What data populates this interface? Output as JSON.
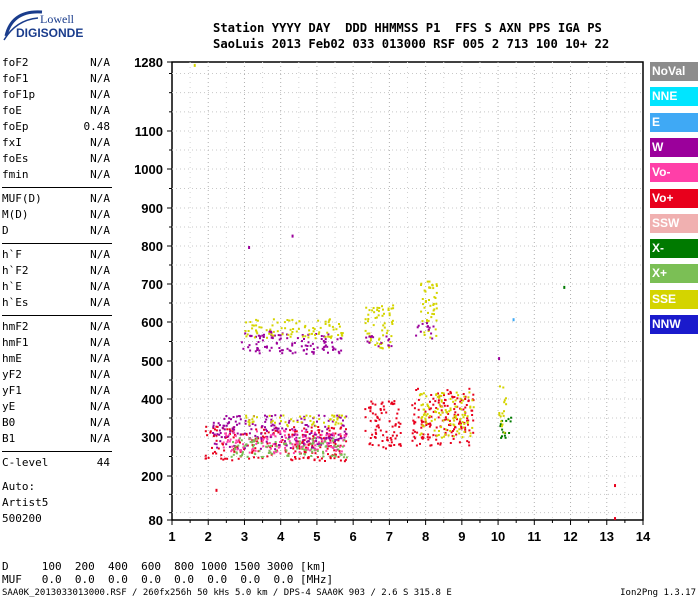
{
  "logo": {
    "line1": "Lowell",
    "line2": "DIGISONDE"
  },
  "header": {
    "row1": "Station YYYY DAY  DDD HHMMSS P1  FFS S AXN PPS IGA PS",
    "row2": "SaoLuis 2013 Feb02 033 013000 RSF 005 2 713 100 10+ 22"
  },
  "params": [
    {
      "k": "foF2",
      "v": "N/A"
    },
    {
      "k": "foF1",
      "v": "N/A"
    },
    {
      "k": "foF1p",
      "v": "N/A"
    },
    {
      "k": "foE",
      "v": "N/A"
    },
    {
      "k": "foEp",
      "v": "0.48"
    },
    {
      "k": "fxI",
      "v": "N/A"
    },
    {
      "k": "foEs",
      "v": "N/A"
    },
    {
      "k": "fmin",
      "v": "N/A"
    },
    {
      "k": "MUF(D)",
      "v": "N/A"
    },
    {
      "k": "M(D)",
      "v": "N/A"
    },
    {
      "k": "D",
      "v": "N/A"
    },
    {
      "k": "h`F",
      "v": "N/A"
    },
    {
      "k": "h`F2",
      "v": "N/A"
    },
    {
      "k": "h`E",
      "v": "N/A"
    },
    {
      "k": "h`Es",
      "v": "N/A"
    },
    {
      "k": "hmF2",
      "v": "N/A"
    },
    {
      "k": "hmF1",
      "v": "N/A"
    },
    {
      "k": "hmE",
      "v": "N/A"
    },
    {
      "k": "yF2",
      "v": "N/A"
    },
    {
      "k": "yF1",
      "v": "N/A"
    },
    {
      "k": "yE",
      "v": "N/A"
    },
    {
      "k": "B0",
      "v": "N/A"
    },
    {
      "k": "B1",
      "v": "N/A"
    },
    {
      "k": "C-level",
      "v": "44"
    }
  ],
  "auto": [
    "Auto:",
    "Artist5",
    "500200"
  ],
  "dtable": {
    "row1": "D     100  200  400  600  800 1000 1500 3000 [km]",
    "row2": "MUF   0.0  0.0  0.0  0.0  0.0  0.0  0.0  0.0 [MHz]"
  },
  "footer": "SAA0K_2013033013000.RSF / 260fx256h 50 kHs 5.0 km / DPS-4 SAA0K 903 / 2.6 S 315.8 E",
  "version": "Ion2Png 1.3.17",
  "legend": [
    {
      "label": "NoVal",
      "color": "#8c8c8c"
    },
    {
      "label": "NNE",
      "color": "#00e5ff"
    },
    {
      "label": "E",
      "color": "#3fa9f5"
    },
    {
      "label": "W",
      "color": "#9b009b"
    },
    {
      "label": "Vo-",
      "color": "#ff3fa8"
    },
    {
      "label": "Vo+",
      "color": "#e8001c"
    },
    {
      "label": "SSW",
      "color": "#f0b0b0"
    },
    {
      "label": "X-",
      "color": "#007a00"
    },
    {
      "label": "X+",
      "color": "#7bbf55"
    },
    {
      "label": "SSE",
      "color": "#d4d400"
    },
    {
      "label": "NNW",
      "color": "#1a1acc"
    }
  ],
  "chart_data": {
    "type": "scatter",
    "xlim": [
      1,
      14
    ],
    "ylim": [
      80,
      1280
    ],
    "x_ticks": [
      1,
      2,
      3,
      4,
      5,
      6,
      7,
      8,
      9,
      10,
      11,
      12,
      13,
      14
    ],
    "y_ticks": [
      80,
      200,
      300,
      400,
      500,
      600,
      700,
      800,
      900,
      1000,
      1100,
      1280
    ],
    "y_scale": "nonlinear",
    "grid": true,
    "legend_placement": "right",
    "clusters": [
      {
        "series": "Vo+",
        "x": [
          1.9,
          5.8
        ],
        "y": [
          240,
          330
        ]
      },
      {
        "series": "W",
        "x": [
          2.1,
          5.8
        ],
        "y": [
          270,
          360
        ]
      },
      {
        "series": "SSE",
        "x": [
          3.0,
          5.8
        ],
        "y": [
          330,
          360
        ]
      },
      {
        "series": "Vo-",
        "x": [
          2.4,
          5.8
        ],
        "y": [
          260,
          320
        ]
      },
      {
        "series": "X+",
        "x": [
          2.6,
          5.8
        ],
        "y": [
          250,
          300
        ]
      },
      {
        "series": "W",
        "x": [
          2.9,
          5.7
        ],
        "y": [
          520,
          580
        ]
      },
      {
        "series": "SSE",
        "x": [
          3.0,
          5.7
        ],
        "y": [
          560,
          610
        ]
      },
      {
        "series": "Vo+",
        "x": [
          6.3,
          7.3
        ],
        "y": [
          270,
          400
        ]
      },
      {
        "series": "SSE",
        "x": [
          6.3,
          7.1
        ],
        "y": [
          530,
          650
        ]
      },
      {
        "series": "W",
        "x": [
          6.3,
          7.1
        ],
        "y": [
          540,
          570
        ]
      },
      {
        "series": "Vo+",
        "x": [
          7.6,
          9.3
        ],
        "y": [
          280,
          430
        ]
      },
      {
        "series": "SSE",
        "x": [
          7.8,
          9.3
        ],
        "y": [
          300,
          420
        ]
      },
      {
        "series": "SSE",
        "x": [
          7.8,
          8.3
        ],
        "y": [
          560,
          710
        ]
      },
      {
        "series": "W",
        "x": [
          7.7,
          8.2
        ],
        "y": [
          560,
          600
        ]
      },
      {
        "series": "X-",
        "x": [
          10.0,
          10.4
        ],
        "y": [
          300,
          360
        ]
      },
      {
        "series": "SSE",
        "x": [
          10.0,
          10.2
        ],
        "y": [
          310,
          440
        ]
      }
    ],
    "points": [
      {
        "series": "Vo+",
        "x": 13.2,
        "y": 178
      },
      {
        "series": "Vo+",
        "x": 13.2,
        "y": 88
      },
      {
        "series": "Vo+",
        "x": 2.2,
        "y": 165
      },
      {
        "series": "W",
        "x": 10.0,
        "y": 510
      },
      {
        "series": "X-",
        "x": 11.8,
        "y": 695
      },
      {
        "series": "E",
        "x": 10.4,
        "y": 610
      },
      {
        "series": "W",
        "x": 3.1,
        "y": 800
      },
      {
        "series": "W",
        "x": 4.3,
        "y": 830
      },
      {
        "series": "SSE",
        "x": 1.6,
        "y": 1275
      }
    ]
  }
}
